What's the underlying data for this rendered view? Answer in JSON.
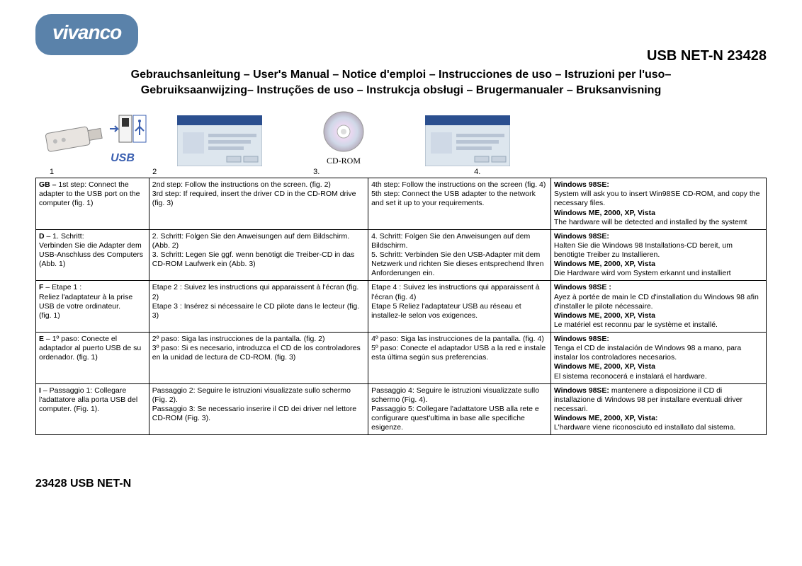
{
  "brand": "vivanco",
  "logo_bg": "#5a82aa",
  "logo_fg": "#ffffff",
  "product_title": "USB NET-N 23428",
  "subtitle_line1": "Gebrauchsanleitung  – User's Manual – Notice d'emploi – Instrucciones de uso – Istruzioni per l'uso–",
  "subtitle_line2": "Gebruiksaanwijzing– Instruções de uso – Instrukcja obsługi – Brugermanualer – Bruksanvisning",
  "figures": {
    "usb_label": "USB",
    "cd_caption": "CD-ROM",
    "numbers": [
      "1",
      "2",
      "3.",
      "4."
    ]
  },
  "col_widths": [
    "15.5%",
    "30%",
    "25%",
    "29.5%"
  ],
  "rows": [
    {
      "c1_bold": "GB –",
      "c1_rest": " 1st step: Connect the adapter to the USB port on the computer (fig. 1)",
      "c2": "2nd step: Follow the instructions on the screen. (fig. 2)\n3rd step: If required, insert the driver CD in the CD-ROM drive (fig. 3)",
      "c3": "4th step: Follow the instructions on the screen (fig. 4)\n5th step: Connect the USB adapter to the network and set it up to your requirements.",
      "c4_a_bold": "Windows 98SE:",
      "c4_a": "System will ask you to insert Win98SE CD-ROM, and copy the necessary files.",
      "c4_b_bold": "Windows ME, 2000, XP, Vista",
      "c4_b": "The hardware will be detected and installed by the systemt"
    },
    {
      "c1_bold": "D",
      "c1_rest": " – 1. Schritt:\nVerbinden Sie die Adapter dem USB-Anschluss des Computers (Abb. 1)",
      "c2": "2. Schritt: Folgen Sie den Anweisungen auf dem Bildschirm. (Abb. 2)\n3. Schritt: Legen Sie ggf. wenn benötigt die Treiber-CD in das CD-ROM Laufwerk ein (Abb. 3)",
      "c3": "4. Schritt: Folgen Sie den Anweisungen auf dem Bildschirm.\n5. Schritt: Verbinden Sie den USB-Adapter mit dem Netzwerk und richten Sie dieses entsprechend Ihren Anforderungen ein.",
      "c4_a_bold": "Windows 98SE:",
      "c4_a": "Halten Sie die Windows 98 Installations-CD bereit, um benötigte Treiber zu Installieren.",
      "c4_b_bold": "Windows ME, 2000, XP, Vista",
      "c4_b": "Die Hardware wird vom System erkannt und installiert"
    },
    {
      "c1_bold": "F",
      "c1_rest": " – Etape 1 :\nReliez l'adaptateur à la prise USB de votre ordinateur.\n(fig. 1)",
      "c2": "Etape 2 : Suivez les instructions qui apparaissent à l'écran (fig. 2)\nEtape 3 : Insérez si nécessaire le CD pilote dans le lecteur (fig. 3)",
      "c3": "Etape 4 : Suivez les instructions qui apparaissent à l'écran (fig. 4)\nEtape 5 Reliez l'adaptateur USB au réseau et installez-le selon vos exigences.",
      "c4_a_bold": "Windows 98SE :",
      "c4_a": "Ayez à portée de main le CD d'installation du Windows 98 afin d'installer le pilote nécessaire.",
      "c4_b_bold": "Windows ME, 2000, XP, Vista",
      "c4_b": "Le matériel est reconnu par le système et installé."
    },
    {
      "c1_bold": "E",
      "c1_rest": " – 1º paso: Conecte el adaptador al puerto USB de su ordenador. (fig. 1)",
      "c2": "2º paso: Siga las instrucciones de la pantalla. (fig. 2)\n3º paso: Si es necesario, introduzca el CD de los controladores en la unidad de lectura de CD-ROM. (fig. 3)",
      "c3": "4º paso: Siga las instrucciones de la pantalla. (fig. 4)\n5º paso: Conecte el adaptador USB a la red e instale esta última según sus preferencias.",
      "c4_a_bold": "Windows 98SE:",
      "c4_a": "Tenga el CD de instalación de Windows 98 a mano, para instalar los controladores necesarios.",
      "c4_b_bold": "Windows ME, 2000, XP, Vista",
      "c4_b": "El sistema reconocerá e instalará el hardware."
    },
    {
      "c1_bold": "I",
      "c1_rest": " – Passaggio 1: Collegare l'adattatore alla porta USB del computer. (Fig. 1).",
      "c2": "Passaggio 2: Seguire le istruzioni visualizzate sullo schermo (Fig. 2).\nPassaggio 3: Se necessario inserire il CD dei driver nel lettore CD-ROM (Fig. 3).",
      "c3": "Passaggio 4: Seguire le istruzioni visualizzate sullo schermo (Fig. 4).\nPassaggio 5: Collegare l'adattatore USB alla rete e configurare quest'ultima in base alle specifiche esigenze.",
      "c4_a_bold": "Windows 98SE:",
      "c4_a": " mantenere a disposizione il CD di installazione di Windows 98 per installare eventuali driver necessari.",
      "c4_b_bold": "Windows ME, 2000, XP, Vista:",
      "c4_b": "L'hardware viene riconosciuto ed installato dal sistema."
    }
  ],
  "footer": "23428 USB NET-N"
}
